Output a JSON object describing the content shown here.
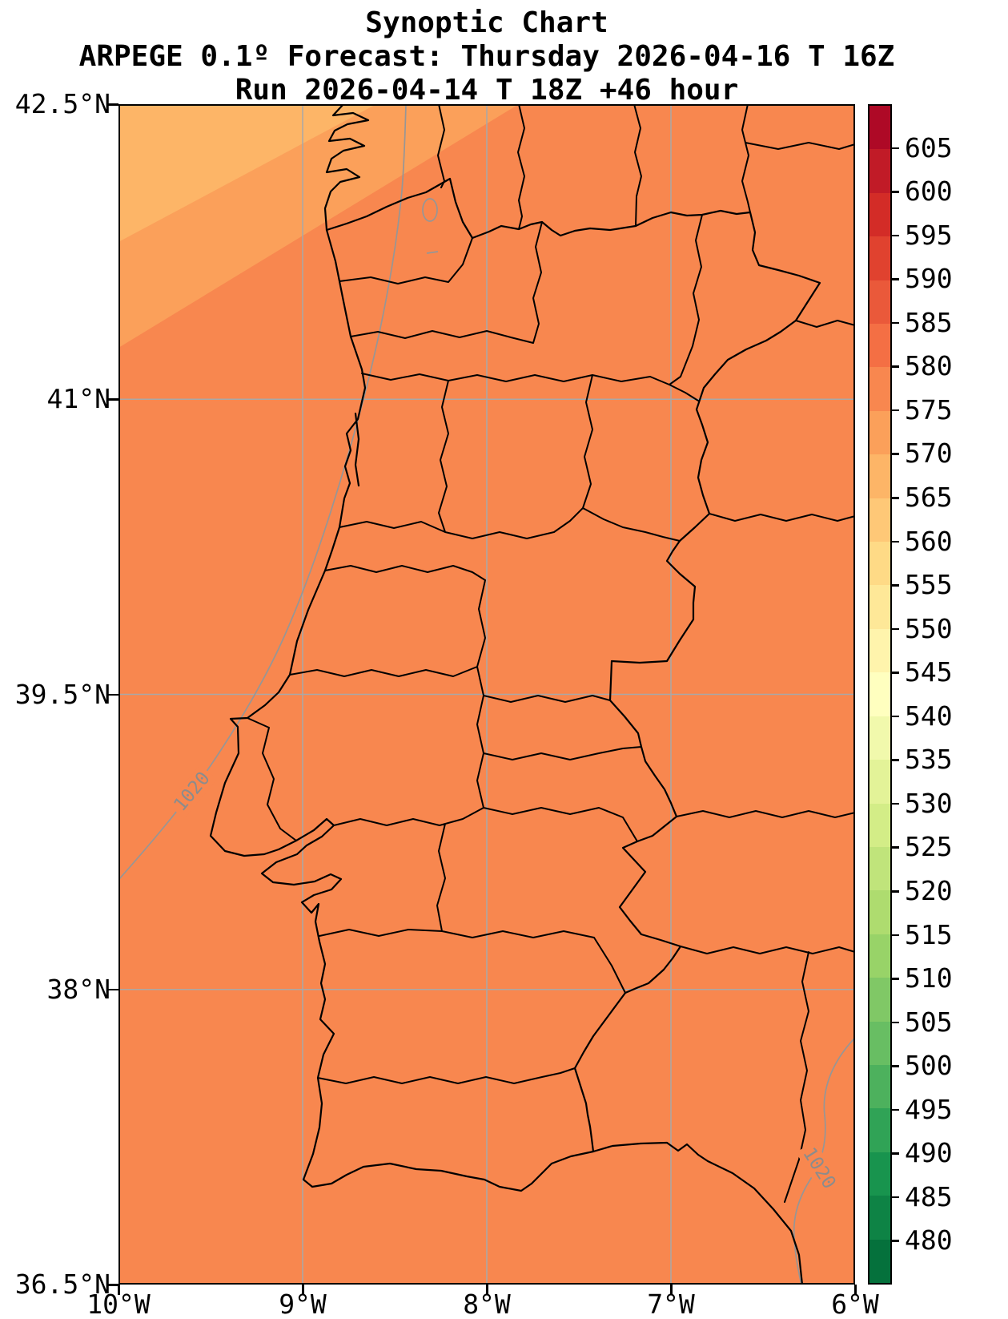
{
  "chart_data": {
    "type": "heatmap",
    "title": "Synoptic Chart",
    "subtitle": "ARPEGE 0.1º Forecast: Thursday 2026-04-16 T 16Z",
    "run_info": "Run 2026-04-14 T 18Z +46 hour",
    "x_axis": {
      "tick_labels": [
        "10°W",
        "9°W",
        "8°W",
        "7°W",
        "6°W"
      ],
      "range": [
        -10,
        -6
      ]
    },
    "y_axis": {
      "tick_labels": [
        "42.5°N",
        "41°N",
        "39.5°N",
        "38°N",
        "36.5°N"
      ],
      "range": [
        42.5,
        36.5
      ]
    },
    "grid": true,
    "colorbar": {
      "orientation": "vertical",
      "value_min": 475,
      "value_max": 610,
      "tick_step": 5,
      "tick_labels_top_to_bottom": [
        "605",
        "600",
        "595",
        "590",
        "585",
        "580",
        "575",
        "570",
        "565",
        "560",
        "555",
        "550",
        "545",
        "540",
        "535",
        "530",
        "525",
        "520",
        "515",
        "510",
        "505",
        "500",
        "495",
        "490",
        "485",
        "480"
      ],
      "band_colors_bottom_to_top": [
        "#05713c",
        "#0e8345",
        "#18944e",
        "#30a356",
        "#4db15d",
        "#68be63",
        "#80c866",
        "#98d368",
        "#aedc6f",
        "#c0e47b",
        "#d3ed87",
        "#e3f398",
        "#f1f9ac",
        "#ffffbf",
        "#fff4ac",
        "#fee898",
        "#feda86",
        "#fec877",
        "#fdb567",
        "#fba05a",
        "#f8874f",
        "#f46f44",
        "#ea593a",
        "#e0422f",
        "#d32c27",
        "#c11b27",
        "#ae0926"
      ]
    },
    "field_fill": {
      "dominant_band": {
        "range": [
          575,
          580
        ],
        "color": "#f8874f"
      },
      "nw_band_mid": {
        "range": [
          570,
          575
        ],
        "color": "#fba05a"
      },
      "nw_band_corner": {
        "range": [
          565,
          570
        ],
        "color": "#fdb567"
      }
    },
    "isobars": [
      {
        "label": "1020"
      },
      {
        "label": "1020"
      }
    ],
    "map": {
      "region": "Portugal and western Spain",
      "boundaries": "coastline and administrative boundaries"
    }
  }
}
